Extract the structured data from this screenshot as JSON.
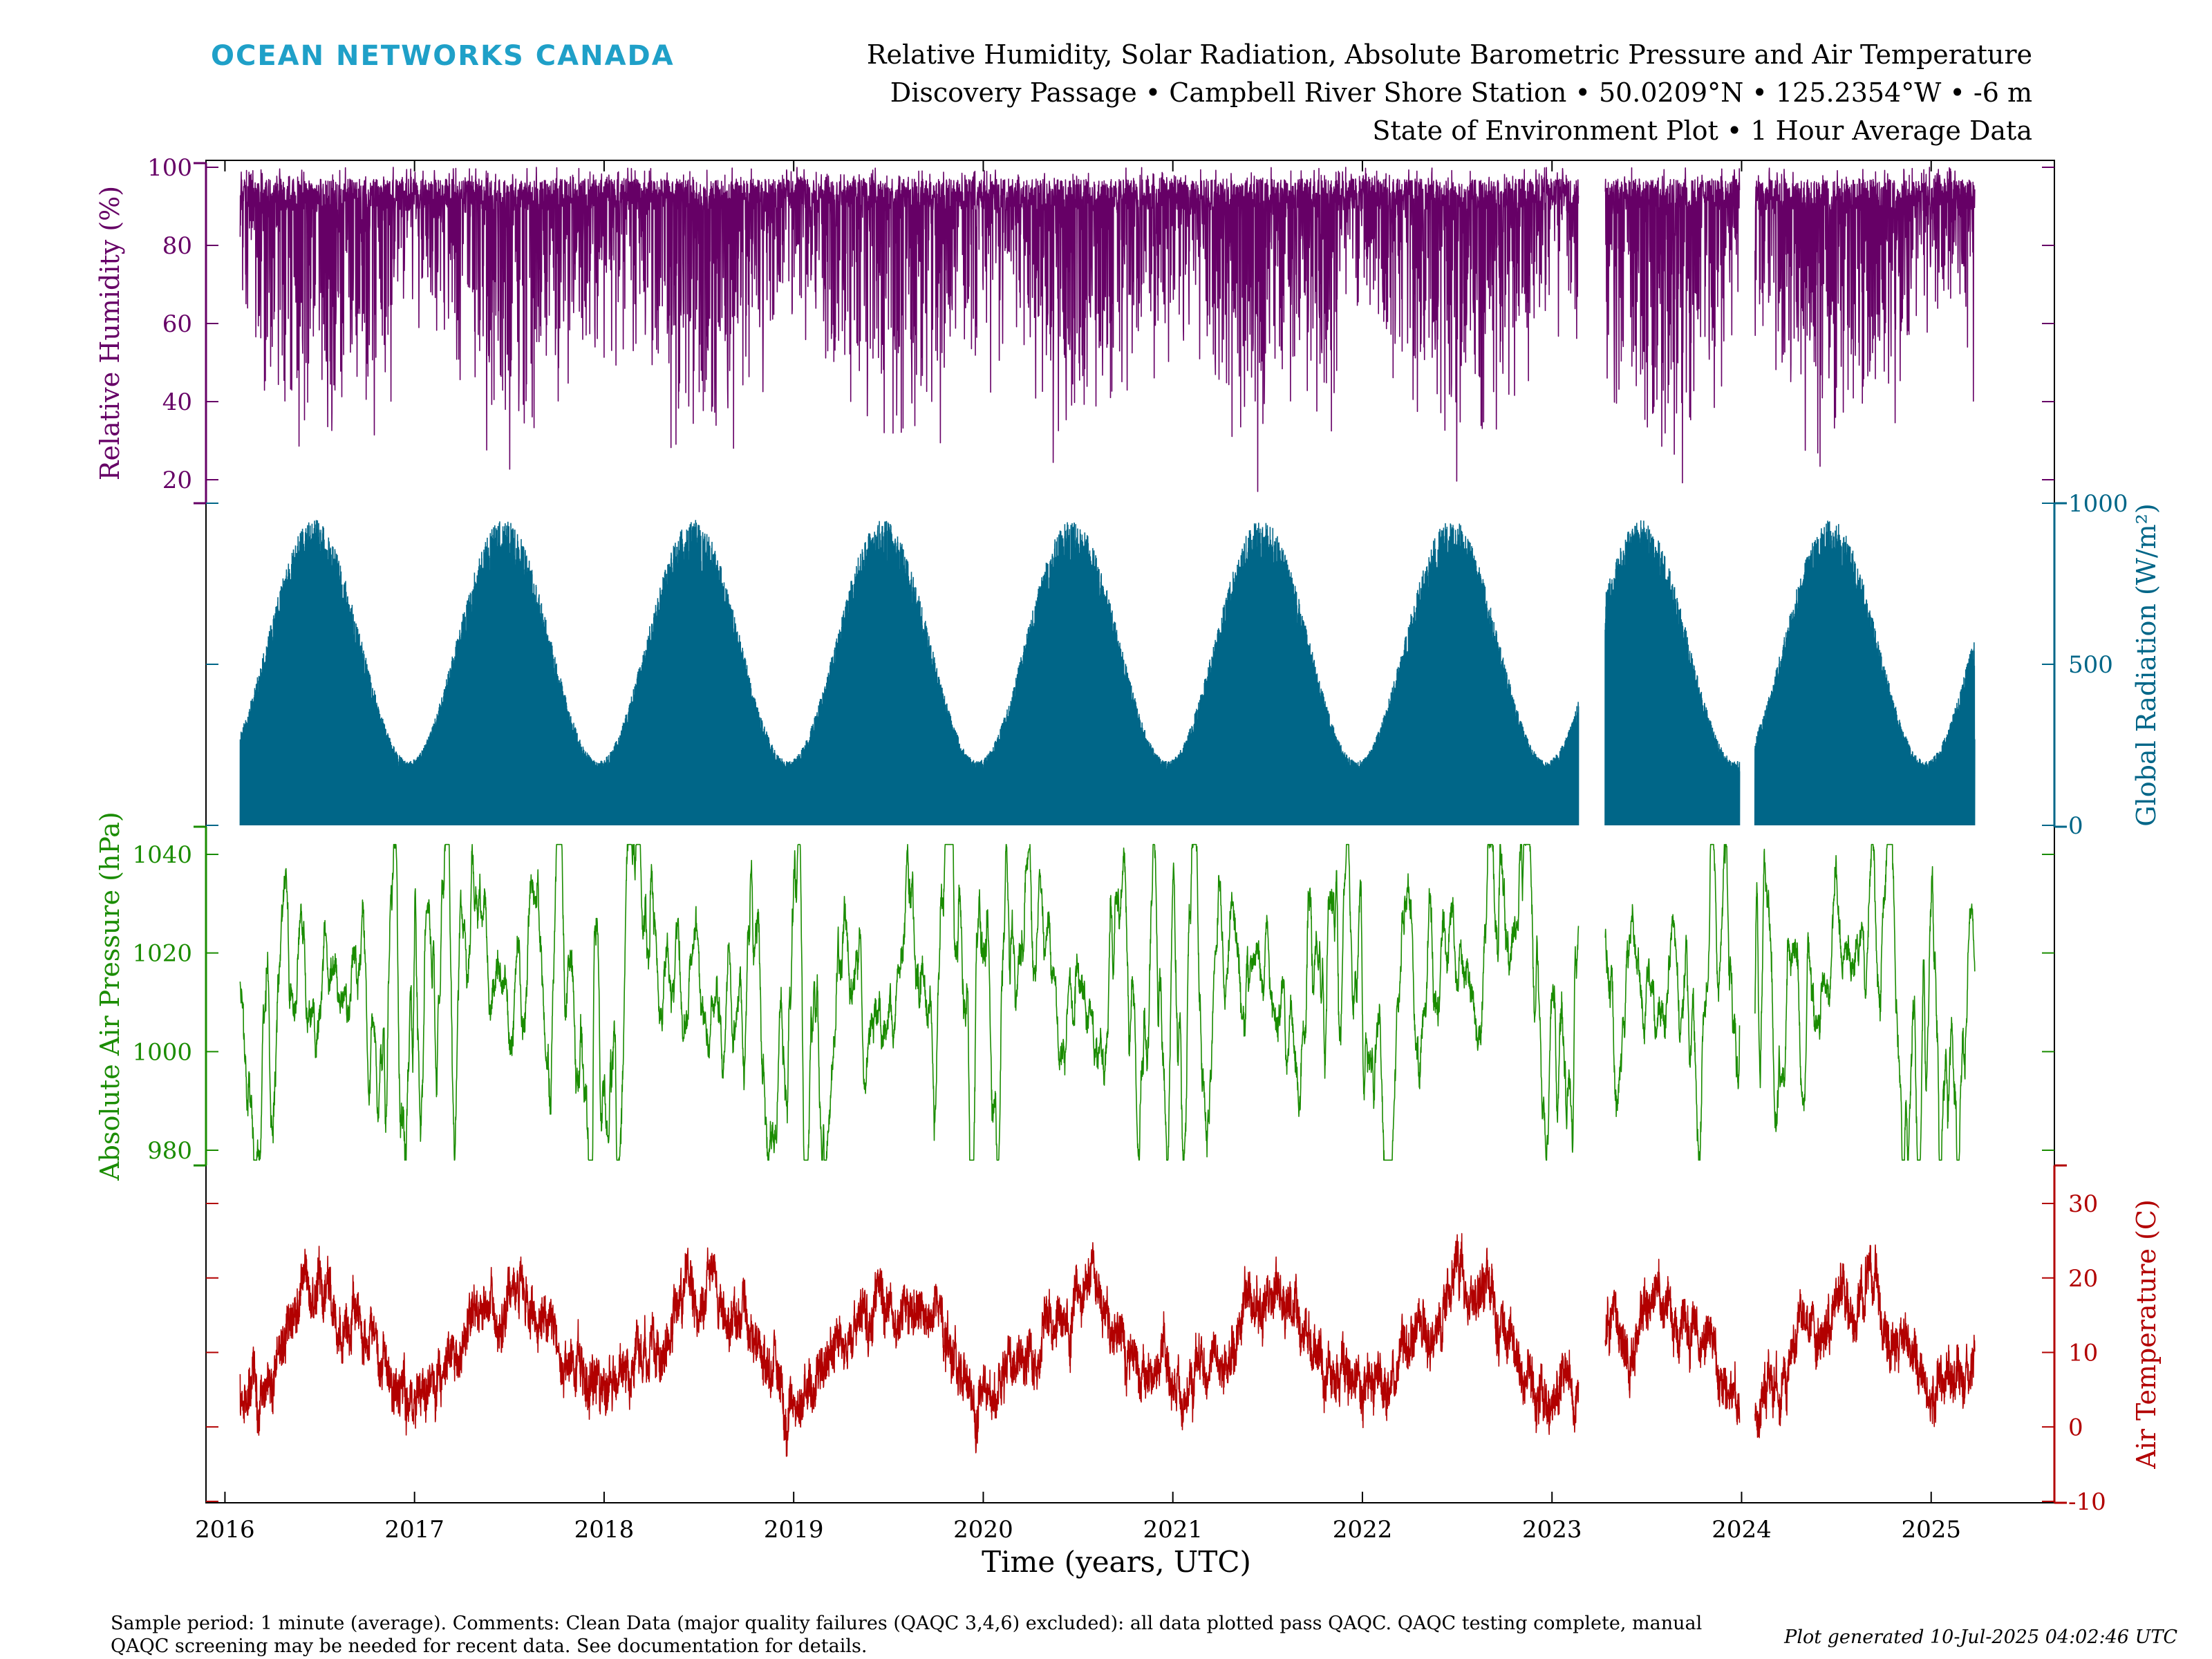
{
  "header": {
    "brand": "OCEAN NETWORKS CANADA",
    "brand_color": "#1fa0c8",
    "title_line1": "Relative Humidity, Solar Radiation, Absolute Barometric Pressure and Air Temperature",
    "title_line2": "Discovery Passage • Campbell River Shore Station • 50.0209°N • 125.2354°W • -6 m",
    "title_line3": "State of Environment Plot • 1 Hour Average Data"
  },
  "footer": {
    "note_line1": "Sample period: 1 minute (average). Comments: Clean Data (major quality failures (QAQC 3,4,6) excluded): all data plotted pass QAQC. QAQC testing complete, manual",
    "note_line2": "QAQC screening may be needed for recent data. See documentation for details.",
    "generated": "Plot generated 10-Jul-2025 04:02:46 UTC"
  },
  "chart_data": {
    "type": "line",
    "xlabel": "Time (years, UTC)",
    "xlim": [
      2015.9,
      2025.65
    ],
    "x_ticks": [
      "2016",
      "2017",
      "2018",
      "2019",
      "2020",
      "2021",
      "2022",
      "2023",
      "2024",
      "2025"
    ],
    "data_range": [
      2016.08,
      2025.23
    ],
    "gaps": [
      [
        2023.14,
        2023.28
      ],
      [
        2023.99,
        2024.07
      ]
    ],
    "panels": [
      {
        "id": "humidity",
        "ylabel": "Relative Humidity (%)",
        "axis_side": "left",
        "color": "#660066",
        "ylim": [
          15,
          101
        ],
        "y_ticks": [
          "20",
          "40",
          "60",
          "80",
          "100"
        ],
        "pattern": "noisy between ~30 and 100, lower minima in summer (~20), near 100 in winter"
      },
      {
        "id": "radiation",
        "ylabel": "Global Radiation (W/m²)",
        "axis_side": "right",
        "color": "#006688",
        "ylim": [
          0,
          1000
        ],
        "y_ticks": [
          "0",
          "500",
          "1000"
        ],
        "seasonal_peak": 950,
        "seasonal_min": 200,
        "pattern": "daily peaks follow yearly cycle, ~950 in June, ~200 in December"
      },
      {
        "id": "pressure",
        "ylabel": "Absolute Air Pressure (hPa)",
        "axis_side": "left",
        "color": "#1a8c00",
        "ylim": [
          975,
          1045
        ],
        "y_ticks": [
          "980",
          "1000",
          "1020",
          "1040"
        ],
        "mean": 1015,
        "pattern": "mean ~1015, range ~978 to ~1042, larger variability in winter"
      },
      {
        "id": "temperature",
        "ylabel": "Air Temperature (C)",
        "axis_side": "right",
        "color": "#b20000",
        "ylim": [
          -11,
          34
        ],
        "y_ticks": [
          "-10",
          "0",
          "10",
          "20",
          "30"
        ],
        "summer_mean": 18,
        "winter_mean": 4,
        "pattern": "seasonal cycle, summer mean ~18 (peaks ~30), winter mean ~4 (lows ~-10)"
      }
    ]
  }
}
